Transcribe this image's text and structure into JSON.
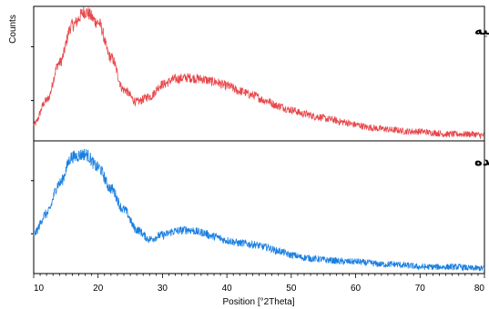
{
  "chart_data": {
    "type": "line",
    "xlabel": "Position [°2Theta]",
    "ylabel": "Counts",
    "xlim": [
      10,
      80
    ],
    "x_ticks": [
      10,
      20,
      30,
      40,
      50,
      60,
      70,
      80
    ],
    "grid": false,
    "series": [
      {
        "name": "فیلامنت اولیه",
        "color": "#e8474b",
        "x": [
          10,
          12,
          14,
          16,
          18,
          20,
          22,
          24,
          26,
          28,
          30,
          32,
          34,
          36,
          38,
          40,
          42,
          44,
          46,
          48,
          50,
          52,
          54,
          56,
          58,
          60,
          62,
          64,
          66,
          68,
          70,
          72,
          74,
          76,
          78,
          80
        ],
        "values": [
          0.12,
          0.3,
          0.58,
          0.86,
          0.96,
          0.88,
          0.62,
          0.38,
          0.29,
          0.33,
          0.42,
          0.46,
          0.47,
          0.46,
          0.44,
          0.41,
          0.37,
          0.34,
          0.3,
          0.26,
          0.23,
          0.2,
          0.18,
          0.16,
          0.14,
          0.12,
          0.1,
          0.09,
          0.08,
          0.07,
          0.07,
          0.06,
          0.05,
          0.05,
          0.05,
          0.04
        ]
      },
      {
        "name": "داربست پرینت شده",
        "color": "#1a7fe0",
        "x": [
          10,
          12,
          14,
          16,
          18,
          20,
          22,
          24,
          26,
          28,
          30,
          32,
          34,
          36,
          38,
          40,
          42,
          44,
          46,
          48,
          50,
          52,
          54,
          56,
          58,
          60,
          62,
          64,
          66,
          68,
          70,
          72,
          74,
          76,
          78,
          80
        ],
        "values": [
          0.3,
          0.45,
          0.68,
          0.88,
          0.9,
          0.8,
          0.64,
          0.48,
          0.33,
          0.26,
          0.29,
          0.32,
          0.33,
          0.31,
          0.28,
          0.25,
          0.23,
          0.22,
          0.2,
          0.17,
          0.14,
          0.12,
          0.11,
          0.1,
          0.09,
          0.09,
          0.08,
          0.07,
          0.07,
          0.06,
          0.05,
          0.05,
          0.05,
          0.05,
          0.04,
          0.04
        ]
      }
    ]
  },
  "colors": {
    "axis": "#000000"
  }
}
